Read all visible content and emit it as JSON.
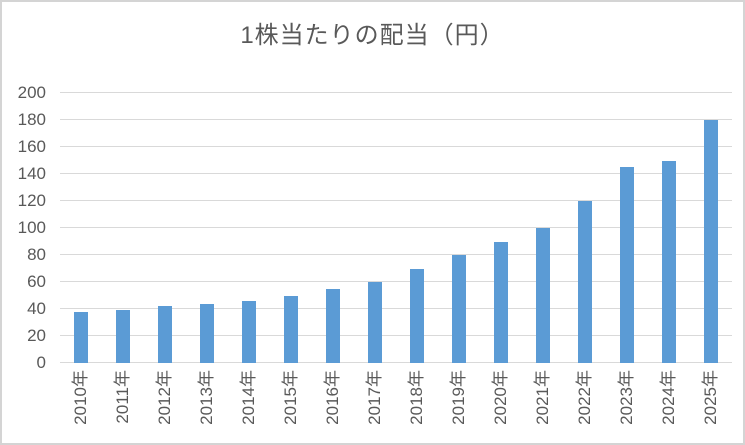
{
  "chart_data": {
    "type": "bar",
    "title": "1株当たりの配当（円）",
    "xlabel": "",
    "ylabel": "",
    "categories": [
      "2010年",
      "2011年",
      "2012年",
      "2013年",
      "2014年",
      "2015年",
      "2016年",
      "2017年",
      "2018年",
      "2019年",
      "2020年",
      "2021年",
      "2022年",
      "2023年",
      "2024年",
      "2025年"
    ],
    "values": [
      38,
      39,
      42,
      44,
      46,
      50,
      55,
      60,
      70,
      80,
      90,
      100,
      120,
      145,
      150,
      180
    ],
    "ylim": [
      0,
      200
    ],
    "yticks": [
      0,
      20,
      40,
      60,
      80,
      100,
      120,
      140,
      160,
      180,
      200
    ],
    "grid": true,
    "legend": false,
    "colors": {
      "bar": "#5b9bd5",
      "gridline": "#d9d9d9",
      "axis_text": "#595959",
      "title_text": "#595959",
      "border": "#d4d4d4",
      "background": "#ffffff"
    }
  }
}
